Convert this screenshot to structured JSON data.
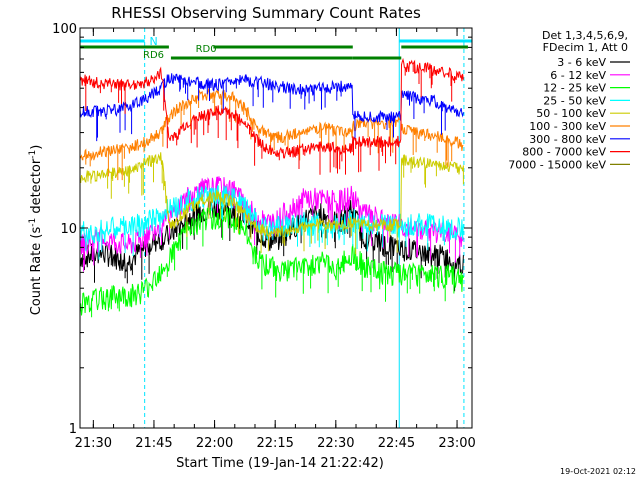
{
  "chart_data": {
    "type": "line",
    "title": "RHESSI Observing Summary Count Rates",
    "xlabel": "Start Time (19-Jan-14 21:22:42)",
    "ylabel_main": "Count Rate (s",
    "ylabel_sup": "-1",
    "ylabel_tail": " detector",
    "ylabel_sup2": "-1",
    "ylabel_close": ")",
    "x_start": "21:22:42",
    "x_range_minutes": [
      4,
      101
    ],
    "y_scale": "log",
    "ylim": [
      1,
      100
    ],
    "y_ticks": [
      "1",
      "10",
      "100"
    ],
    "x_ticks": [
      {
        "label": "21:30",
        "min": 7.3
      },
      {
        "label": "21:45",
        "min": 22.3
      },
      {
        "label": "22:00",
        "min": 37.3
      },
      {
        "label": "22:15",
        "min": 52.3
      },
      {
        "label": "22:30",
        "min": 67.3
      },
      {
        "label": "22:45",
        "min": 82.3
      },
      {
        "label": "23:00",
        "min": 97.3
      }
    ],
    "legend_header": [
      "Det 1,3,4,5,6,9,",
      "FDecim 1, Att 0"
    ],
    "flag_labels": {
      "night": "N",
      "rd6": "RD6",
      "rd0": "RD0"
    },
    "night_intervals": [
      [
        4,
        20
      ],
      [
        83,
        101
      ]
    ],
    "rd0_intervals": [
      [
        4,
        26
      ],
      [
        37,
        71.5
      ],
      [
        83.5,
        100
      ]
    ],
    "rd6_intervals": [
      [
        26.5,
        71.5
      ],
      [
        71.5,
        83.5
      ]
    ],
    "vlines_solid": [
      4,
      83
    ],
    "vlines_dashed": [
      20,
      99
    ],
    "series": [
      {
        "name": "3 - 6 keV",
        "color": "#000000",
        "values": [
          [
            4,
            7.2
          ],
          [
            10,
            7.5
          ],
          [
            16,
            6.8
          ],
          [
            20,
            8.0
          ],
          [
            22,
            8.5
          ],
          [
            26,
            9.2
          ],
          [
            30,
            11
          ],
          [
            34,
            12.2
          ],
          [
            38,
            12.8
          ],
          [
            42,
            12
          ],
          [
            45,
            11
          ],
          [
            48,
            9.5
          ],
          [
            52,
            8.5
          ],
          [
            56,
            9.8
          ],
          [
            60,
            11.2
          ],
          [
            64,
            11.8
          ],
          [
            68,
            10.5
          ],
          [
            71,
            12.5
          ],
          [
            74,
            9.2
          ],
          [
            78,
            8.5
          ],
          [
            82,
            8.0
          ],
          [
            86,
            7.8
          ],
          [
            90,
            7.5
          ],
          [
            94,
            7.2
          ],
          [
            97,
            6.8
          ],
          [
            99,
            6.5
          ]
        ]
      },
      {
        "name": "6 - 12 keV",
        "color": "#ff00ff",
        "values": [
          [
            4,
            8.5
          ],
          [
            10,
            8.8
          ],
          [
            16,
            8.2
          ],
          [
            20,
            9.0
          ],
          [
            22,
            10
          ],
          [
            26,
            11
          ],
          [
            30,
            14
          ],
          [
            34,
            15.5
          ],
          [
            38,
            16
          ],
          [
            42,
            15.5
          ],
          [
            45,
            13
          ],
          [
            48,
            11
          ],
          [
            52,
            10.5
          ],
          [
            56,
            12.5
          ],
          [
            60,
            14.2
          ],
          [
            64,
            13.8
          ],
          [
            68,
            13.5
          ],
          [
            71,
            14.5
          ],
          [
            74,
            12
          ],
          [
            78,
            11
          ],
          [
            82,
            10.5
          ],
          [
            86,
            10
          ],
          [
            90,
            9.8
          ],
          [
            94,
            9.5
          ],
          [
            97,
            9.2
          ],
          [
            99,
            8.5
          ]
        ]
      },
      {
        "name": "12 - 25 keV",
        "color": "#00ff00",
        "values": [
          [
            4,
            4.2
          ],
          [
            10,
            4.5
          ],
          [
            16,
            4.6
          ],
          [
            20,
            4.9
          ],
          [
            22,
            5.5
          ],
          [
            26,
            7
          ],
          [
            30,
            9.5
          ],
          [
            34,
            10.8
          ],
          [
            38,
            11.5
          ],
          [
            42,
            11
          ],
          [
            45,
            9.5
          ],
          [
            48,
            7
          ],
          [
            52,
            6.3
          ],
          [
            56,
            6.1
          ],
          [
            60,
            6.5
          ],
          [
            64,
            6.8
          ],
          [
            68,
            6.2
          ],
          [
            71,
            7.5
          ],
          [
            74,
            6.5
          ],
          [
            78,
            6.0
          ],
          [
            82,
            5.9
          ],
          [
            86,
            5.8
          ],
          [
            90,
            5.9
          ],
          [
            94,
            5.8
          ],
          [
            97,
            5.7
          ],
          [
            99,
            5.3
          ]
        ]
      },
      {
        "name": "25 - 50 keV",
        "color": "#00ffff",
        "values": [
          [
            4,
            9.5
          ],
          [
            10,
            9.8
          ],
          [
            16,
            10.2
          ],
          [
            20,
            10.5
          ],
          [
            22,
            11
          ],
          [
            26,
            12.5
          ],
          [
            30,
            13.8
          ],
          [
            34,
            14.5
          ],
          [
            38,
            14.8
          ],
          [
            42,
            14.2
          ],
          [
            45,
            12.5
          ],
          [
            48,
            10.5
          ],
          [
            52,
            10
          ],
          [
            56,
            10.2
          ],
          [
            60,
            10.6
          ],
          [
            64,
            10.4
          ],
          [
            68,
            10.2
          ],
          [
            71,
            11
          ],
          [
            74,
            10.8
          ],
          [
            78,
            10.5
          ],
          [
            82,
            10.4
          ],
          [
            86,
            10.3
          ],
          [
            90,
            10.5
          ],
          [
            94,
            10.2
          ],
          [
            97,
            10.0
          ],
          [
            99,
            9.8
          ]
        ]
      },
      {
        "name": "50 - 100 keV",
        "color": "#cccc00",
        "values": [
          [
            4,
            18
          ],
          [
            10,
            18.5
          ],
          [
            16,
            19.5
          ],
          [
            20,
            21
          ],
          [
            22,
            22
          ],
          [
            24,
            23
          ],
          [
            26,
            10
          ],
          [
            30,
            12
          ],
          [
            34,
            13.8
          ],
          [
            38,
            14.5
          ],
          [
            42,
            13.5
          ],
          [
            45,
            11.5
          ],
          [
            48,
            10
          ],
          [
            52,
            9.5
          ],
          [
            56,
            9.8
          ],
          [
            60,
            10.2
          ],
          [
            64,
            10.5
          ],
          [
            68,
            10.2
          ],
          [
            71.5,
            10.8
          ],
          [
            72,
            10.5
          ],
          [
            78,
            10.3
          ],
          [
            82,
            10.4
          ],
          [
            83.5,
            10.5
          ],
          [
            84,
            22
          ],
          [
            90,
            21
          ],
          [
            94,
            20.5
          ],
          [
            97,
            20
          ],
          [
            99,
            19.5
          ]
        ]
      },
      {
        "name": "100 - 300 keV",
        "color": "#ff8000",
        "values": [
          [
            4,
            23.5
          ],
          [
            10,
            24
          ],
          [
            16,
            25
          ],
          [
            20,
            27
          ],
          [
            22,
            28.5
          ],
          [
            24,
            30
          ],
          [
            26,
            36
          ],
          [
            30,
            42
          ],
          [
            34,
            46
          ],
          [
            38,
            47.5
          ],
          [
            42,
            45
          ],
          [
            45,
            39
          ],
          [
            48,
            31
          ],
          [
            52,
            28.5
          ],
          [
            56,
            29
          ],
          [
            60,
            30.5
          ],
          [
            64,
            31.5
          ],
          [
            68,
            30.5
          ],
          [
            71.5,
            30
          ],
          [
            72,
            32.5
          ],
          [
            78,
            33.5
          ],
          [
            82,
            34
          ],
          [
            83.5,
            34
          ],
          [
            84,
            31
          ],
          [
            90,
            29.5
          ],
          [
            94,
            28
          ],
          [
            97,
            27
          ],
          [
            99,
            25.5
          ]
        ]
      },
      {
        "name": "300 - 800 keV",
        "color": "#0000ff",
        "values": [
          [
            4,
            38
          ],
          [
            10,
            38.5
          ],
          [
            16,
            40
          ],
          [
            20,
            44
          ],
          [
            22,
            47
          ],
          [
            24,
            50
          ],
          [
            26,
            56
          ],
          [
            30,
            55
          ],
          [
            34,
            53
          ],
          [
            38,
            52
          ],
          [
            42,
            54
          ],
          [
            45,
            55
          ],
          [
            48,
            54
          ],
          [
            52,
            52
          ],
          [
            56,
            50
          ],
          [
            60,
            49
          ],
          [
            64,
            50
          ],
          [
            68,
            51
          ],
          [
            71.5,
            52
          ],
          [
            72,
            36
          ],
          [
            78,
            36
          ],
          [
            82,
            36
          ],
          [
            83.5,
            36
          ],
          [
            84,
            46
          ],
          [
            90,
            44
          ],
          [
            94,
            41
          ],
          [
            97,
            39
          ],
          [
            99,
            37
          ]
        ]
      },
      {
        "name": "800 - 7000 keV",
        "color": "#ff0000",
        "values": [
          [
            4,
            55
          ],
          [
            10,
            53
          ],
          [
            16,
            52
          ],
          [
            20,
            53
          ],
          [
            22,
            56
          ],
          [
            24,
            60
          ],
          [
            26,
            27
          ],
          [
            30,
            32
          ],
          [
            34,
            36
          ],
          [
            38,
            38.5
          ],
          [
            42,
            37
          ],
          [
            45,
            33
          ],
          [
            48,
            27
          ],
          [
            52,
            24
          ],
          [
            56,
            24
          ],
          [
            60,
            25
          ],
          [
            64,
            25.5
          ],
          [
            68,
            25
          ],
          [
            71.5,
            25
          ],
          [
            72,
            27
          ],
          [
            78,
            27
          ],
          [
            82,
            27
          ],
          [
            83.5,
            27
          ],
          [
            84,
            65
          ],
          [
            90,
            63
          ],
          [
            94,
            60
          ],
          [
            97,
            58
          ],
          [
            99,
            55
          ]
        ]
      },
      {
        "name": "7000 - 15000 keV",
        "color": "#808000",
        "values": [
          [
            4,
            55
          ],
          [
            26,
            55
          ]
        ]
      }
    ]
  },
  "footer_date": "19-Oct-2021 02:12"
}
